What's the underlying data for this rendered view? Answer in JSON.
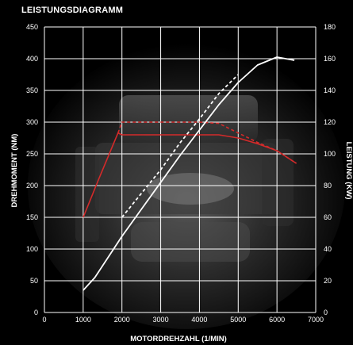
{
  "chart_data": {
    "type": "line",
    "title": "LEISTUNGSDIAGRAMM",
    "xlabel": "MOTORDREHZAHL (1/MIN)",
    "ylabel_left": "DREHMOMENT (NM)",
    "ylabel_right": "LEISTUNG (KW)",
    "xlim": [
      0,
      7000
    ],
    "ylim_left": [
      0,
      450
    ],
    "ylim_right": [
      0,
      180
    ],
    "x_ticks": [
      "0",
      "1000",
      "2000",
      "3000",
      "4000",
      "5000",
      "6000",
      "7000"
    ],
    "y_left_ticks": [
      "0",
      "50",
      "100",
      "150",
      "200",
      "250",
      "300",
      "350",
      "400",
      "450"
    ],
    "y_right_ticks": [
      "0",
      "20",
      "40",
      "60",
      "80",
      "100",
      "120",
      "140",
      "160",
      "180"
    ],
    "grid": true,
    "series": [
      {
        "axis": "left",
        "color": "#d42a2a",
        "style": "solid",
        "x": [
          1000,
          1400,
          1900,
          2000,
          4500,
          5000,
          5500,
          6000,
          6500
        ],
        "y": [
          150,
          210,
          283,
          280,
          280,
          275,
          266,
          255,
          235
        ]
      },
      {
        "axis": "left",
        "color": "#d42a2a",
        "style": "dashed",
        "x": [
          1900,
          2000,
          4000,
          4500,
          5000,
          5500,
          6000,
          6500
        ],
        "y": [
          283,
          300,
          300,
          298,
          283,
          268,
          255,
          235
        ]
      },
      {
        "axis": "right",
        "color": "#ffffff",
        "style": "solid",
        "x": [
          1000,
          1300,
          2000,
          2500,
          3000,
          3500,
          4000,
          4500,
          5000,
          5500,
          6000,
          6450
        ],
        "y": [
          14,
          22,
          48,
          65,
          82,
          99,
          115,
          131,
          145,
          156,
          161,
          159
        ]
      },
      {
        "axis": "right",
        "color": "#ffffff",
        "style": "dashed",
        "x": [
          2000,
          2500,
          3000,
          3500,
          4000,
          4500,
          5000
        ],
        "y": [
          60,
          75,
          90,
          107,
          122,
          138,
          150
        ]
      }
    ]
  }
}
